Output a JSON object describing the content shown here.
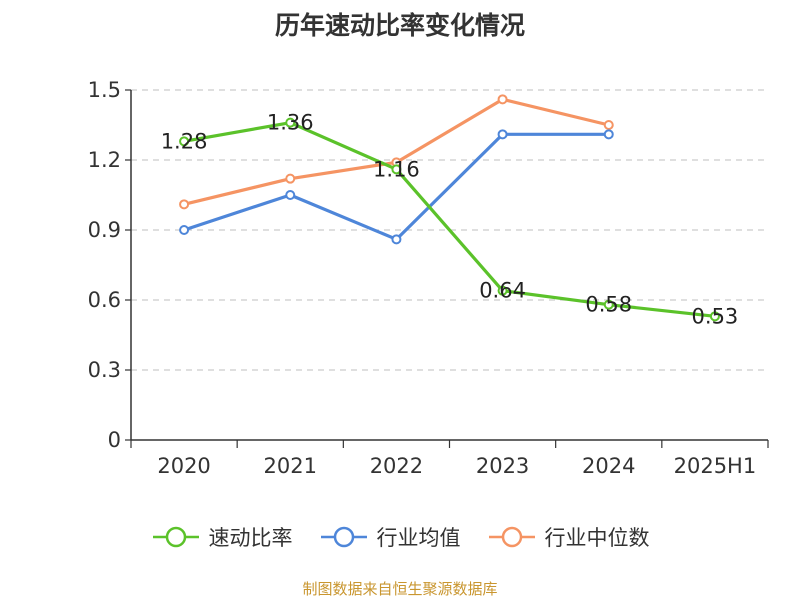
{
  "chart_data": {
    "type": "line",
    "title": "历年速动比率变化情况",
    "categories": [
      "2020",
      "2021",
      "2022",
      "2023",
      "2024",
      "2025H1"
    ],
    "y_ticks": [
      "0",
      "0.3",
      "0.6",
      "0.9",
      "1.2",
      "1.5"
    ],
    "ylim": [
      0,
      1.5
    ],
    "grid": true,
    "legend_position": "bottom",
    "series": [
      {
        "name": "速动比率",
        "color": "#5bc22a",
        "values": [
          1.28,
          1.36,
          1.16,
          0.64,
          0.58,
          0.53
        ],
        "labels": [
          "1.28",
          "1.36",
          "1.16",
          "0.64",
          "0.58",
          "0.53"
        ]
      },
      {
        "name": "行业均值",
        "color": "#4e86d9",
        "values": [
          0.9,
          1.05,
          0.86,
          1.31,
          1.31,
          null
        ]
      },
      {
        "name": "行业中位数",
        "color": "#f59463",
        "values": [
          1.01,
          1.12,
          1.19,
          1.46,
          1.35,
          null
        ]
      }
    ]
  },
  "footer": {
    "source": "制图数据来自恒生聚源数据库"
  }
}
